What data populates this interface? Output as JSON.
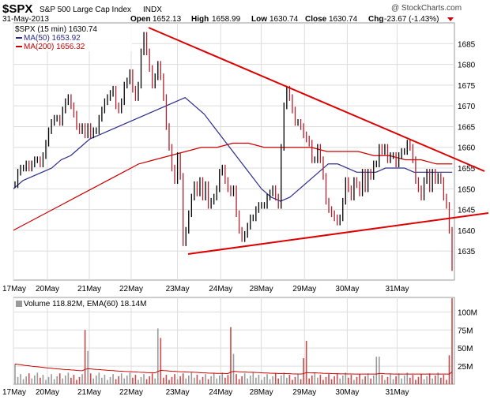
{
  "header": {
    "symbol": "$SPX",
    "name": "S&P 500 Large Cap Index",
    "exchange": "INDX",
    "date": "31-May-2013",
    "open_label": "Open",
    "open": "1652.13",
    "high_label": "High",
    "high": "1658.99",
    "low_label": "Low",
    "low": "1630.74",
    "close_label": "Close",
    "close": "1630.74",
    "chg_label": "Chg",
    "chg": "-23.67 (-1.43%)",
    "watermark": "@ StockCharts.com"
  },
  "colors": {
    "price_line": "#000000",
    "ma50": "#2b2b8c",
    "ma200": "#cc0000",
    "trendline": "#dd0000",
    "volume_up": "#9a9a9a",
    "volume_down": "#c94a4a",
    "grid": "#dddddd",
    "negative_change": "#cc0000"
  },
  "legend": {
    "price": "$SPX (15 min) 1630.74",
    "ma50": "MA(50) 1653.92",
    "ma200": "MA(200) 1656.32",
    "volume": "Volume 118.82M, EMA(60) 18.14M"
  },
  "chart_data": [
    {
      "type": "line",
      "title": "$SPX (15 min)",
      "interval": "15 min",
      "x_labels": [
        "17May",
        "20May",
        "21May",
        "22May",
        "23May",
        "24May",
        "28May",
        "29May",
        "30May",
        "31May"
      ],
      "ylim": [
        1628,
        1690
      ],
      "y_ticks": [
        1635,
        1640,
        1645,
        1650,
        1655,
        1660,
        1665,
        1670,
        1675,
        1680,
        1685
      ],
      "series": [
        {
          "name": "$SPX (15 min) 1630.74",
          "values": [
            1651,
            1654,
            1655,
            1655,
            1656,
            1655,
            1656,
            1657,
            1657,
            1656,
            1658,
            1661,
            1664,
            1666,
            1667,
            1667,
            1666,
            1669,
            1671,
            1672,
            1670,
            1668,
            1665,
            1664,
            1665,
            1663,
            1665,
            1663,
            1664,
            1664,
            1667,
            1669,
            1671,
            1672,
            1673,
            1674,
            1670,
            1669,
            1671,
            1675,
            1676,
            1678,
            1674,
            1672,
            1675,
            1683,
            1687,
            1683,
            1679,
            1675,
            1677,
            1680,
            1677,
            1672,
            1665,
            1660,
            1655,
            1652,
            1658,
            1653,
            1637,
            1640,
            1644,
            1648,
            1651,
            1649,
            1652,
            1648,
            1651,
            1646,
            1647,
            1648,
            1650,
            1654,
            1655,
            1652,
            1650,
            1649,
            1650,
            1644,
            1640,
            1638,
            1639,
            1641,
            1643,
            1643,
            1645,
            1646,
            1646,
            1646,
            1648,
            1649,
            1650,
            1648,
            1646,
            1660,
            1670,
            1674,
            1672,
            1669,
            1666,
            1666,
            1665,
            1663,
            1662,
            1661,
            1657,
            1657,
            1660,
            1657,
            1653,
            1647,
            1645,
            1644,
            1643,
            1642,
            1643,
            1647,
            1652,
            1650,
            1648,
            1652,
            1651,
            1649,
            1654,
            1650,
            1654,
            1653,
            1656,
            1656,
            1660,
            1659,
            1660,
            1657,
            1658,
            1658,
            1656,
            1658,
            1659,
            1659,
            1661,
            1660,
            1657,
            1652,
            1650,
            1648,
            1652,
            1654,
            1650,
            1654,
            1652,
            1653,
            1652,
            1648,
            1646,
            1640,
            1631
          ]
        },
        {
          "name": "MA(50) 1653.92",
          "values": [
            1650,
            1652,
            1653,
            1654,
            1655,
            1657,
            1658,
            1660,
            1662,
            1663,
            1664,
            1665,
            1666,
            1667,
            1668,
            1669,
            1670,
            1671,
            1672,
            1670,
            1668,
            1665,
            1662,
            1659,
            1656,
            1653,
            1650,
            1648,
            1647,
            1648,
            1650,
            1652,
            1654,
            1656,
            1656,
            1655,
            1654,
            1654,
            1654,
            1655,
            1655,
            1655,
            1654,
            1654,
            1654,
            1654,
            1654
          ]
        },
        {
          "name": "MA(200) 1656.32",
          "values": [
            1640,
            1642,
            1644,
            1646,
            1648,
            1650,
            1652,
            1654,
            1656,
            1657,
            1658,
            1659,
            1660,
            1660,
            1661,
            1661,
            1660,
            1660,
            1660,
            1660,
            1659,
            1659,
            1659,
            1658,
            1658,
            1657,
            1657,
            1656,
            1656
          ]
        }
      ]
    },
    {
      "type": "bar",
      "title": "Volume",
      "x_labels": [
        "17May",
        "20May",
        "21May",
        "22May",
        "23May",
        "24May",
        "28May",
        "29May",
        "30May",
        "31May"
      ],
      "ylim": [
        0,
        120
      ],
      "y_ticks": [
        25,
        50,
        75,
        100
      ],
      "y_tick_labels": [
        "25M",
        "50M",
        "75M",
        "100M"
      ],
      "unit": "M",
      "last_value": "118.82M",
      "ema60": "18.14M"
    }
  ]
}
